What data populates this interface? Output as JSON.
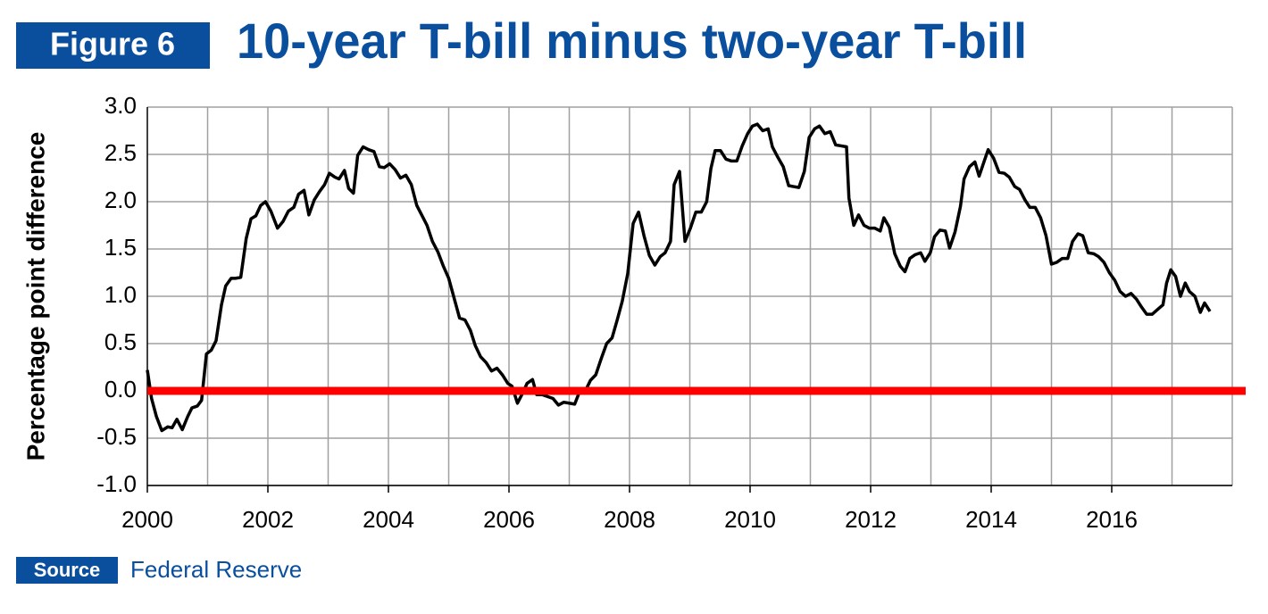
{
  "chart_data": {
    "type": "line",
    "figure_label": "Figure 6",
    "title": "10-year T-bill minus two-year T-bill",
    "y_label": "Percentage  point  difference",
    "source_label": "Source",
    "source": "Federal Reserve",
    "color": "#000000",
    "x": [
      2000.0,
      2000.07,
      2000.15,
      2000.24,
      2000.34,
      2000.41,
      2000.49,
      2000.58,
      2000.67,
      2000.74,
      2000.83,
      2000.9,
      2000.98,
      2001.06,
      2001.14,
      2001.23,
      2001.3,
      2001.39,
      2001.46,
      2001.55,
      2001.64,
      2001.72,
      2001.8,
      2001.88,
      2001.96,
      2002.05,
      2002.16,
      2002.25,
      2002.34,
      2002.43,
      2002.51,
      2002.6,
      2002.68,
      2002.77,
      2002.86,
      2002.94,
      2003.02,
      2003.11,
      2003.18,
      2003.27,
      2003.34,
      2003.42,
      2003.49,
      2003.58,
      2003.67,
      2003.76,
      2003.85,
      2003.93,
      2004.02,
      2004.11,
      2004.2,
      2004.29,
      2004.38,
      2004.47,
      2004.56,
      2004.64,
      2004.73,
      2004.82,
      2004.91,
      2005.0,
      2005.09,
      2005.18,
      2005.27,
      2005.36,
      2005.44,
      2005.53,
      2005.62,
      2005.71,
      2005.8,
      2005.89,
      2005.98,
      2006.05,
      2006.14,
      2006.23,
      2006.3,
      2006.39,
      2006.46,
      2006.55,
      2006.64,
      2006.73,
      2006.82,
      2006.91,
      2007.0,
      2007.09,
      2007.17,
      2007.26,
      2007.35,
      2007.44,
      2007.53,
      2007.62,
      2007.71,
      2007.8,
      2007.88,
      2007.97,
      2008.06,
      2008.15,
      2008.24,
      2008.33,
      2008.42,
      2008.51,
      2008.59,
      2008.68,
      2008.74,
      2008.83,
      2008.92,
      2009.01,
      2009.1,
      2009.19,
      2009.28,
      2009.35,
      2009.42,
      2009.51,
      2009.6,
      2009.69,
      2009.78,
      2009.87,
      2009.96,
      2010.04,
      2010.12,
      2010.21,
      2010.3,
      2010.37,
      2010.46,
      2010.55,
      2010.64,
      2010.72,
      2010.81,
      2010.9,
      2010.98,
      2011.07,
      2011.15,
      2011.24,
      2011.33,
      2011.42,
      2011.51,
      2011.6,
      2011.64,
      2011.72,
      2011.8,
      2011.89,
      2011.98,
      2012.07,
      2012.16,
      2012.22,
      2012.31,
      2012.4,
      2012.49,
      2012.57,
      2012.65,
      2012.74,
      2012.83,
      2012.9,
      2012.99,
      2013.06,
      2013.15,
      2013.24,
      2013.31,
      2013.4,
      2013.49,
      2013.55,
      2013.64,
      2013.73,
      2013.8,
      2013.88,
      2013.95,
      2014.04,
      2014.13,
      2014.22,
      2014.3,
      2014.39,
      2014.47,
      2014.56,
      2014.64,
      2014.73,
      2014.82,
      2014.91,
      2015.0,
      2015.09,
      2015.18,
      2015.27,
      2015.35,
      2015.44,
      2015.52,
      2015.61,
      2015.7,
      2015.78,
      2015.87,
      2015.96,
      2016.05,
      2016.14,
      2016.23,
      2016.32,
      2016.41,
      2016.49,
      2016.58,
      2016.67,
      2016.76,
      2016.85,
      2016.91,
      2016.98,
      2017.06,
      2017.14,
      2017.22,
      2017.29,
      2017.38,
      2017.47,
      2017.54,
      2017.63
    ],
    "values": [
      0.22,
      -0.08,
      -0.27,
      -0.42,
      -0.38,
      -0.39,
      -0.3,
      -0.41,
      -0.27,
      -0.18,
      -0.16,
      -0.1,
      0.39,
      0.43,
      0.53,
      0.91,
      1.11,
      1.19,
      1.19,
      1.2,
      1.61,
      1.82,
      1.85,
      1.96,
      2.0,
      1.9,
      1.72,
      1.79,
      1.9,
      1.94,
      2.08,
      2.12,
      1.86,
      2.02,
      2.11,
      2.18,
      2.3,
      2.26,
      2.24,
      2.33,
      2.14,
      2.09,
      2.49,
      2.58,
      2.55,
      2.53,
      2.37,
      2.36,
      2.4,
      2.34,
      2.25,
      2.28,
      2.18,
      1.96,
      1.85,
      1.75,
      1.58,
      1.47,
      1.32,
      1.19,
      0.98,
      0.77,
      0.75,
      0.64,
      0.48,
      0.36,
      0.3,
      0.21,
      0.24,
      0.17,
      0.08,
      0.05,
      -0.13,
      -0.02,
      0.08,
      0.12,
      -0.04,
      -0.04,
      -0.06,
      -0.08,
      -0.15,
      -0.12,
      -0.13,
      -0.14,
      -0.01,
      -0.01,
      0.11,
      0.17,
      0.34,
      0.5,
      0.56,
      0.76,
      0.95,
      1.24,
      1.77,
      1.89,
      1.64,
      1.43,
      1.33,
      1.42,
      1.46,
      1.58,
      2.18,
      2.32,
      1.58,
      1.72,
      1.89,
      1.89,
      2.0,
      2.35,
      2.54,
      2.54,
      2.45,
      2.43,
      2.43,
      2.59,
      2.72,
      2.8,
      2.82,
      2.75,
      2.77,
      2.58,
      2.47,
      2.37,
      2.17,
      2.16,
      2.15,
      2.32,
      2.68,
      2.77,
      2.8,
      2.72,
      2.74,
      2.6,
      2.59,
      2.58,
      2.04,
      1.75,
      1.86,
      1.75,
      1.72,
      1.72,
      1.69,
      1.83,
      1.73,
      1.45,
      1.32,
      1.26,
      1.4,
      1.44,
      1.46,
      1.37,
      1.46,
      1.63,
      1.7,
      1.69,
      1.51,
      1.68,
      1.95,
      2.24,
      2.37,
      2.42,
      2.27,
      2.42,
      2.55,
      2.46,
      2.31,
      2.3,
      2.26,
      2.16,
      2.13,
      2.02,
      1.94,
      1.94,
      1.83,
      1.64,
      1.34,
      1.36,
      1.4,
      1.4,
      1.58,
      1.66,
      1.64,
      1.46,
      1.45,
      1.42,
      1.36,
      1.25,
      1.17,
      1.05,
      1.0,
      1.03,
      0.97,
      0.89,
      0.81,
      0.81,
      0.86,
      0.91,
      1.14,
      1.28,
      1.21,
      1.0,
      1.14,
      1.05,
      1.0,
      0.83,
      0.93,
      0.84
    ],
    "xlim": [
      2000,
      2018
    ],
    "xticks": [
      2000,
      2002,
      2004,
      2006,
      2008,
      2010,
      2012,
      2014,
      2016
    ],
    "xgrid_step": 1,
    "ylim": [
      -1,
      3
    ],
    "yticks": [
      {
        "value": -1,
        "label": "-1.0"
      },
      {
        "value": -0.5,
        "label": "-0.5"
      },
      {
        "value": 0,
        "label": "0.0"
      },
      0.5,
      {
        "value": 1,
        "label": "1.0"
      },
      1.5,
      {
        "value": 2,
        "label": "2.0"
      },
      2.5,
      {
        "value": 3,
        "label": "3.0"
      }
    ],
    "grid": true,
    "reference_line": {
      "value": 0,
      "color": "#ff0000"
    }
  }
}
